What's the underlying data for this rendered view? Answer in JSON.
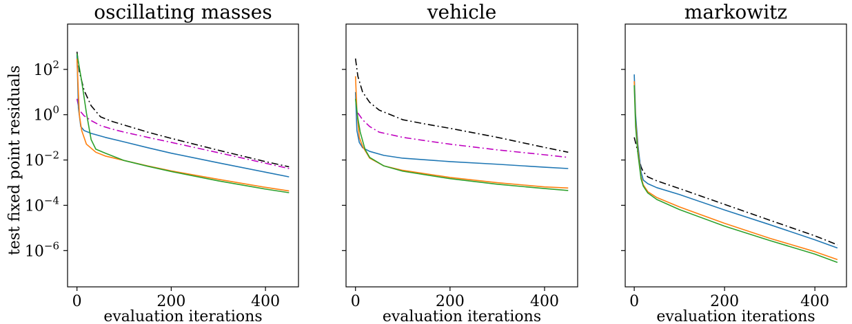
{
  "figure": {
    "ylabel": "test fixed point residuals"
  },
  "chart_data": [
    {
      "type": "line",
      "title": "oscillating masses",
      "xlabel": "evaluation iterations",
      "ylabel": "test fixed point residuals",
      "x_scale": "linear",
      "y_scale": "log",
      "xlim": [
        -20,
        470
      ],
      "ylim_log10": [
        -7.6,
        4.0
      ],
      "x_ticks": [
        "0",
        "200",
        "400"
      ],
      "y_ticks": [
        {
          "base": "10",
          "exp": "2",
          "log10": 2
        },
        {
          "base": "10",
          "exp": "0",
          "log10": 0
        },
        {
          "base": "10",
          "exp": "−2",
          "log10": -2
        },
        {
          "base": "10",
          "exp": "−4",
          "log10": -4
        },
        {
          "base": "10",
          "exp": "−6",
          "log10": -6
        }
      ],
      "grid": false,
      "series": [
        {
          "color": "#000000",
          "dash": "dashdot",
          "x": [
            0,
            5,
            15,
            30,
            50,
            75,
            100,
            150,
            200,
            300,
            400,
            450
          ],
          "y": [
            600,
            80,
            12,
            2.5,
            0.8,
            0.5,
            0.35,
            0.17,
            0.09,
            0.027,
            0.0085,
            0.005
          ]
        },
        {
          "color": "#bf00bf",
          "dash": "dashdot",
          "x": [
            0,
            5,
            15,
            30,
            50,
            75,
            100,
            150,
            200,
            300,
            400,
            450
          ],
          "y": [
            5,
            1.6,
            0.9,
            0.55,
            0.33,
            0.23,
            0.17,
            0.1,
            0.06,
            0.021,
            0.0072,
            0.0042
          ]
        },
        {
          "color": "#1f77b4",
          "dash": "solid",
          "x": [
            0,
            3,
            8,
            15,
            30,
            60,
            100,
            150,
            200,
            300,
            400,
            450
          ],
          "y": [
            450,
            2,
            0.3,
            0.2,
            0.15,
            0.1,
            0.063,
            0.035,
            0.02,
            0.0075,
            0.0029,
            0.0018
          ]
        },
        {
          "color": "#ff7f0e",
          "dash": "solid",
          "x": [
            0,
            5,
            10,
            20,
            40,
            60,
            100,
            150,
            200,
            300,
            400,
            450
          ],
          "y": [
            300,
            1,
            0.2,
            0.05,
            0.022,
            0.015,
            0.0095,
            0.0055,
            0.0033,
            0.0014,
            0.00062,
            0.00043
          ]
        },
        {
          "color": "#2ca02c",
          "dash": "solid",
          "x": [
            0,
            10,
            20,
            30,
            40,
            60,
            100,
            150,
            200,
            300,
            400,
            450
          ],
          "y": [
            500,
            30,
            1.2,
            0.08,
            0.03,
            0.02,
            0.0095,
            0.0053,
            0.0031,
            0.0012,
            0.00052,
            0.00036
          ]
        }
      ]
    },
    {
      "type": "line",
      "title": "vehicle",
      "xlabel": "evaluation iterations",
      "x_scale": "linear",
      "y_scale": "log",
      "xlim": [
        -20,
        470
      ],
      "ylim_log10": [
        -7.6,
        4.0
      ],
      "x_ticks": [
        "0",
        "200",
        "400"
      ],
      "y_ticks_labeled": false,
      "grid": false,
      "series": [
        {
          "color": "#000000",
          "dash": "dashdot",
          "x": [
            0,
            5,
            15,
            30,
            50,
            100,
            150,
            200,
            300,
            400,
            450
          ],
          "y": [
            300,
            50,
            10,
            3.5,
            1.6,
            0.6,
            0.38,
            0.25,
            0.1,
            0.036,
            0.022
          ]
        },
        {
          "color": "#bf00bf",
          "dash": "dashdot",
          "x": [
            5,
            15,
            30,
            50,
            100,
            150,
            200,
            300,
            400,
            450
          ],
          "y": [
            1.2,
            0.6,
            0.3,
            0.17,
            0.1,
            0.07,
            0.05,
            0.028,
            0.017,
            0.013
          ]
        },
        {
          "color": "#1f77b4",
          "dash": "solid",
          "x": [
            0,
            3,
            8,
            15,
            30,
            60,
            100,
            200,
            300,
            400,
            450
          ],
          "y": [
            10,
            0.2,
            0.06,
            0.035,
            0.024,
            0.016,
            0.012,
            0.0085,
            0.0065,
            0.0048,
            0.0042
          ]
        },
        {
          "color": "#ff7f0e",
          "dash": "solid",
          "x": [
            0,
            3,
            8,
            15,
            30,
            60,
            100,
            200,
            300,
            400,
            450
          ],
          "y": [
            50,
            1.5,
            0.1,
            0.04,
            0.012,
            0.0055,
            0.0035,
            0.0017,
            0.001,
            0.00065,
            0.00058
          ]
        },
        {
          "color": "#2ca02c",
          "dash": "solid",
          "x": [
            0,
            5,
            10,
            20,
            30,
            60,
            100,
            200,
            300,
            400,
            450
          ],
          "y": [
            5,
            0.7,
            0.17,
            0.03,
            0.013,
            0.0055,
            0.0032,
            0.0015,
            0.00085,
            0.00055,
            0.00045
          ]
        }
      ]
    },
    {
      "type": "line",
      "title": "markowitz",
      "xlabel": "evaluation iterations",
      "x_scale": "linear",
      "y_scale": "log",
      "xlim": [
        -20,
        470
      ],
      "ylim_log10": [
        -7.6,
        4.0
      ],
      "x_ticks": [
        "0",
        "200",
        "400"
      ],
      "y_ticks_labeled": false,
      "grid": false,
      "series": [
        {
          "color": "#000000",
          "dash": "dashdot",
          "x": [
            0,
            5,
            10,
            15,
            20,
            30,
            50,
            100,
            200,
            300,
            400,
            450
          ],
          "y": [
            0.1,
            0.04,
            0.015,
            0.005,
            0.003,
            0.0018,
            0.0012,
            0.00055,
            0.00011,
            2.2e-05,
            4.5e-06,
            1.8e-06
          ]
        },
        {
          "color": "#1f77b4",
          "dash": "solid",
          "x": [
            0,
            3,
            8,
            15,
            20,
            30,
            50,
            100,
            200,
            300,
            400,
            450
          ],
          "y": [
            60,
            1,
            0.05,
            0.003,
            0.0013,
            0.0009,
            0.0006,
            0.0003,
            6.2e-05,
            1.4e-05,
            3e-06,
            1.3e-06
          ]
        },
        {
          "color": "#ff7f0e",
          "dash": "solid",
          "x": [
            0,
            3,
            8,
            15,
            20,
            30,
            50,
            100,
            200,
            300,
            400,
            450
          ],
          "y": [
            30,
            0.5,
            0.03,
            0.0018,
            0.0008,
            0.0004,
            0.00022,
            8.5e-05,
            1.6e-05,
            3.5e-06,
            9e-07,
            4e-07
          ]
        },
        {
          "color": "#2ca02c",
          "dash": "solid",
          "x": [
            0,
            3,
            8,
            15,
            20,
            30,
            50,
            100,
            200,
            300,
            400,
            450
          ],
          "y": [
            20,
            0.3,
            0.02,
            0.0015,
            0.0007,
            0.00035,
            0.00018,
            6.5e-05,
            1.2e-05,
            2.8e-06,
            7e-07,
            3e-07
          ]
        }
      ]
    }
  ]
}
